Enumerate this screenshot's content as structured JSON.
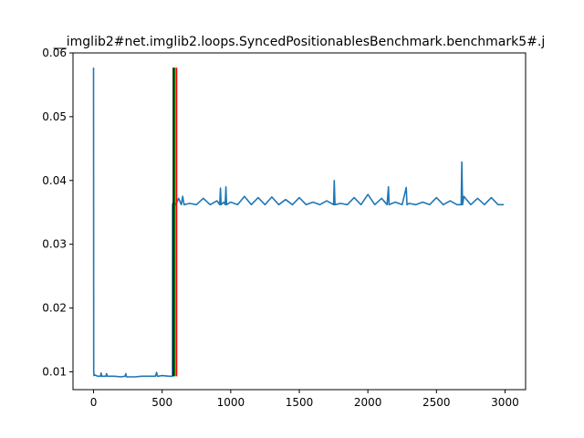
{
  "chart_data": {
    "type": "line",
    "title": "__imglib2#net.imglib2.loops.SyncedPositionablesBenchmark.benchmark5#.j",
    "xlabel": "",
    "ylabel": "",
    "xlim": [
      -150,
      3150
    ],
    "ylim": [
      0.0072,
      0.06
    ],
    "xticks": [
      0,
      500,
      1000,
      1500,
      2000,
      2500,
      3000
    ],
    "yticks": [
      0.01,
      0.02,
      0.03,
      0.04,
      0.05,
      0.06
    ],
    "xtick_labels": [
      "0",
      "500",
      "1000",
      "1500",
      "2000",
      "2500",
      "3000"
    ],
    "ytick_labels": [
      "0.01",
      "0.02",
      "0.03",
      "0.04",
      "0.05",
      "0.06"
    ],
    "grid": false,
    "series": [
      {
        "color": "#1f77b4",
        "x": [
          0,
          1,
          3,
          10,
          30,
          50,
          55,
          60,
          90,
          95,
          100,
          150,
          200,
          230,
          235,
          240,
          300,
          350,
          400,
          450,
          460,
          465,
          470,
          500,
          550,
          575,
          576,
          580,
          600,
          620,
          640,
          650,
          660,
          700,
          750,
          800,
          850,
          900,
          920,
          925,
          930,
          950,
          960,
          965,
          970,
          1000,
          1050,
          1100,
          1150,
          1200,
          1250,
          1300,
          1350,
          1400,
          1450,
          1500,
          1550,
          1600,
          1650,
          1700,
          1750,
          1755,
          1760,
          1800,
          1850,
          1900,
          1950,
          2000,
          2050,
          2100,
          2140,
          2150,
          2155,
          2200,
          2250,
          2280,
          2285,
          2300,
          2350,
          2400,
          2450,
          2500,
          2550,
          2600,
          2650,
          2680,
          2685,
          2690,
          2700,
          2750,
          2800,
          2850,
          2900,
          2950,
          2990
        ],
        "y": [
          0.0577,
          0.0101,
          0.0094,
          0.0095,
          0.0093,
          0.0093,
          0.0098,
          0.0093,
          0.0093,
          0.0097,
          0.0093,
          0.0093,
          0.0092,
          0.0093,
          0.0097,
          0.0092,
          0.0092,
          0.0093,
          0.0093,
          0.0093,
          0.0099,
          0.0093,
          0.0093,
          0.0094,
          0.0093,
          0.0093,
          0.0362,
          0.0365,
          0.0362,
          0.0372,
          0.0362,
          0.0375,
          0.0362,
          0.0364,
          0.0362,
          0.0372,
          0.0362,
          0.0368,
          0.0362,
          0.0388,
          0.0362,
          0.0366,
          0.0362,
          0.039,
          0.0362,
          0.0366,
          0.0362,
          0.0375,
          0.0362,
          0.0373,
          0.0362,
          0.0374,
          0.0362,
          0.037,
          0.0362,
          0.0373,
          0.0362,
          0.0366,
          0.0362,
          0.0368,
          0.0362,
          0.04,
          0.0362,
          0.0364,
          0.0362,
          0.0373,
          0.0362,
          0.0378,
          0.0362,
          0.0372,
          0.0362,
          0.039,
          0.0362,
          0.0366,
          0.0362,
          0.0389,
          0.0362,
          0.0364,
          0.0362,
          0.0366,
          0.0362,
          0.0373,
          0.0362,
          0.0368,
          0.0362,
          0.0362,
          0.0429,
          0.0362,
          0.0375,
          0.0362,
          0.0372,
          0.0362,
          0.0373,
          0.0362,
          0.0362
        ]
      }
    ],
    "vlines": [
      {
        "x": 582,
        "color": "#000000"
      },
      {
        "x": 592,
        "color": "#008000"
      },
      {
        "x": 605,
        "color": "#ff0000"
      }
    ],
    "vline_range": [
      0.0093,
      0.0577
    ]
  }
}
